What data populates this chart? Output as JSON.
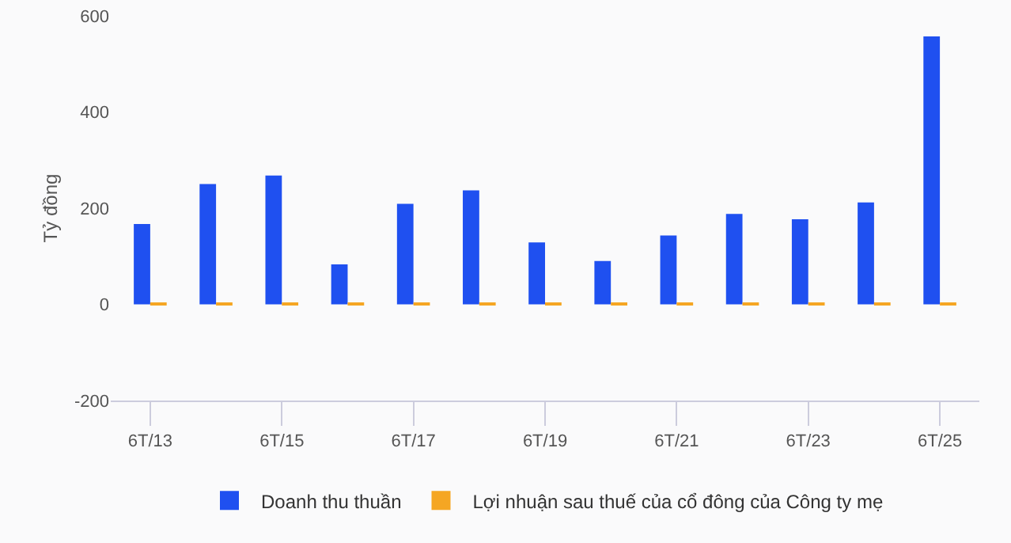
{
  "chart_data": {
    "type": "bar",
    "ylabel": "Tỷ đồng",
    "categories": [
      "6T/13",
      null,
      "6T/15",
      null,
      "6T/17",
      null,
      "6T/19",
      null,
      "6T/21",
      null,
      "6T/23",
      null,
      "6T/25"
    ],
    "series": [
      {
        "name": "Doanh thu thuần",
        "color": "#1f50f0",
        "values": [
          167,
          250,
          268,
          83,
          209,
          237,
          129,
          90,
          143,
          188,
          177,
          212,
          557
        ]
      },
      {
        "name": "Lợi nhuận sau thuế của cổ đông của Công ty mẹ",
        "color": "#f5a623",
        "values": [
          3,
          3,
          3,
          1,
          1,
          1,
          3,
          1,
          1,
          1,
          1,
          1,
          3
        ]
      }
    ],
    "ylim": [
      -200,
      600
    ],
    "yticks": [
      -200,
      0,
      200,
      400,
      600
    ],
    "grid": false,
    "legend": "bottom"
  }
}
